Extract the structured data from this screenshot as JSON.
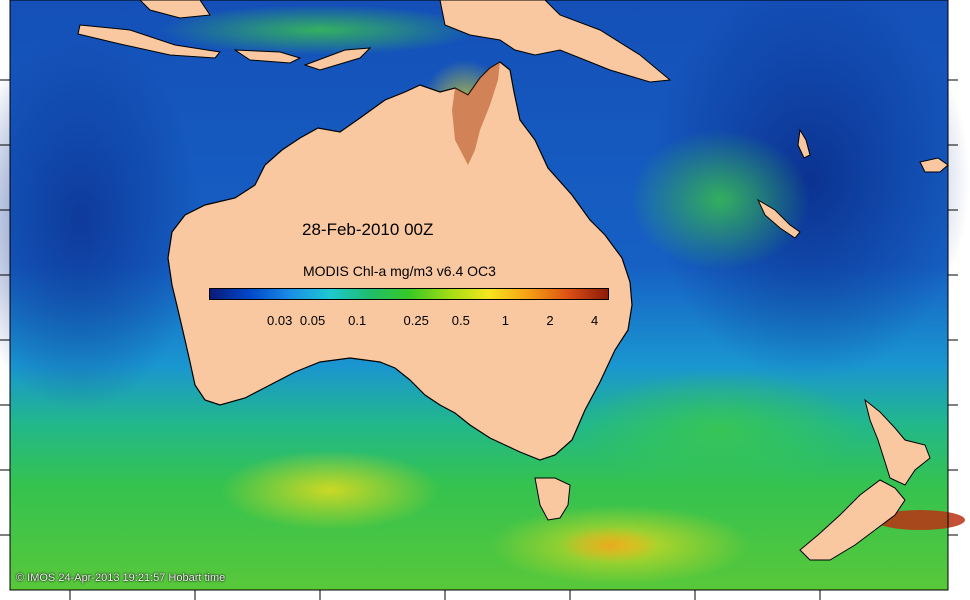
{
  "map": {
    "date_label": "28-Feb-2010 00Z",
    "footer": "© IMOS 24-Apr-2013 19:21:57 Hobart time",
    "colorbar": {
      "title": "MODIS Chl-a mg/m3 v6.4 OC3",
      "scale": "log",
      "range": [
        0.01,
        5
      ],
      "ticks": [
        {
          "label": "0.03",
          "value": 0.03
        },
        {
          "label": "0.05",
          "value": 0.05
        },
        {
          "label": "0.1",
          "value": 0.1
        },
        {
          "label": "0.25",
          "value": 0.25
        },
        {
          "label": "0.5",
          "value": 0.5
        },
        {
          "label": "1",
          "value": 1
        },
        {
          "label": "2",
          "value": 2
        },
        {
          "label": "4",
          "value": 4
        }
      ],
      "colors": [
        "#0a1a7a",
        "#0048c8",
        "#1a8ce6",
        "#1ec8d2",
        "#1fbe6e",
        "#36c826",
        "#a0dc14",
        "#f5e61e",
        "#f5a014",
        "#dc5014",
        "#8c1a0a"
      ]
    },
    "colors": {
      "land": "#f9c8a0",
      "ocean_deep": "#0d3fa8",
      "ocean_mid": "#1a86d8",
      "ocean_green": "#2fbe62",
      "ocean_yellow": "#c8dc1e",
      "coastal_high": "#c8501a"
    }
  }
}
